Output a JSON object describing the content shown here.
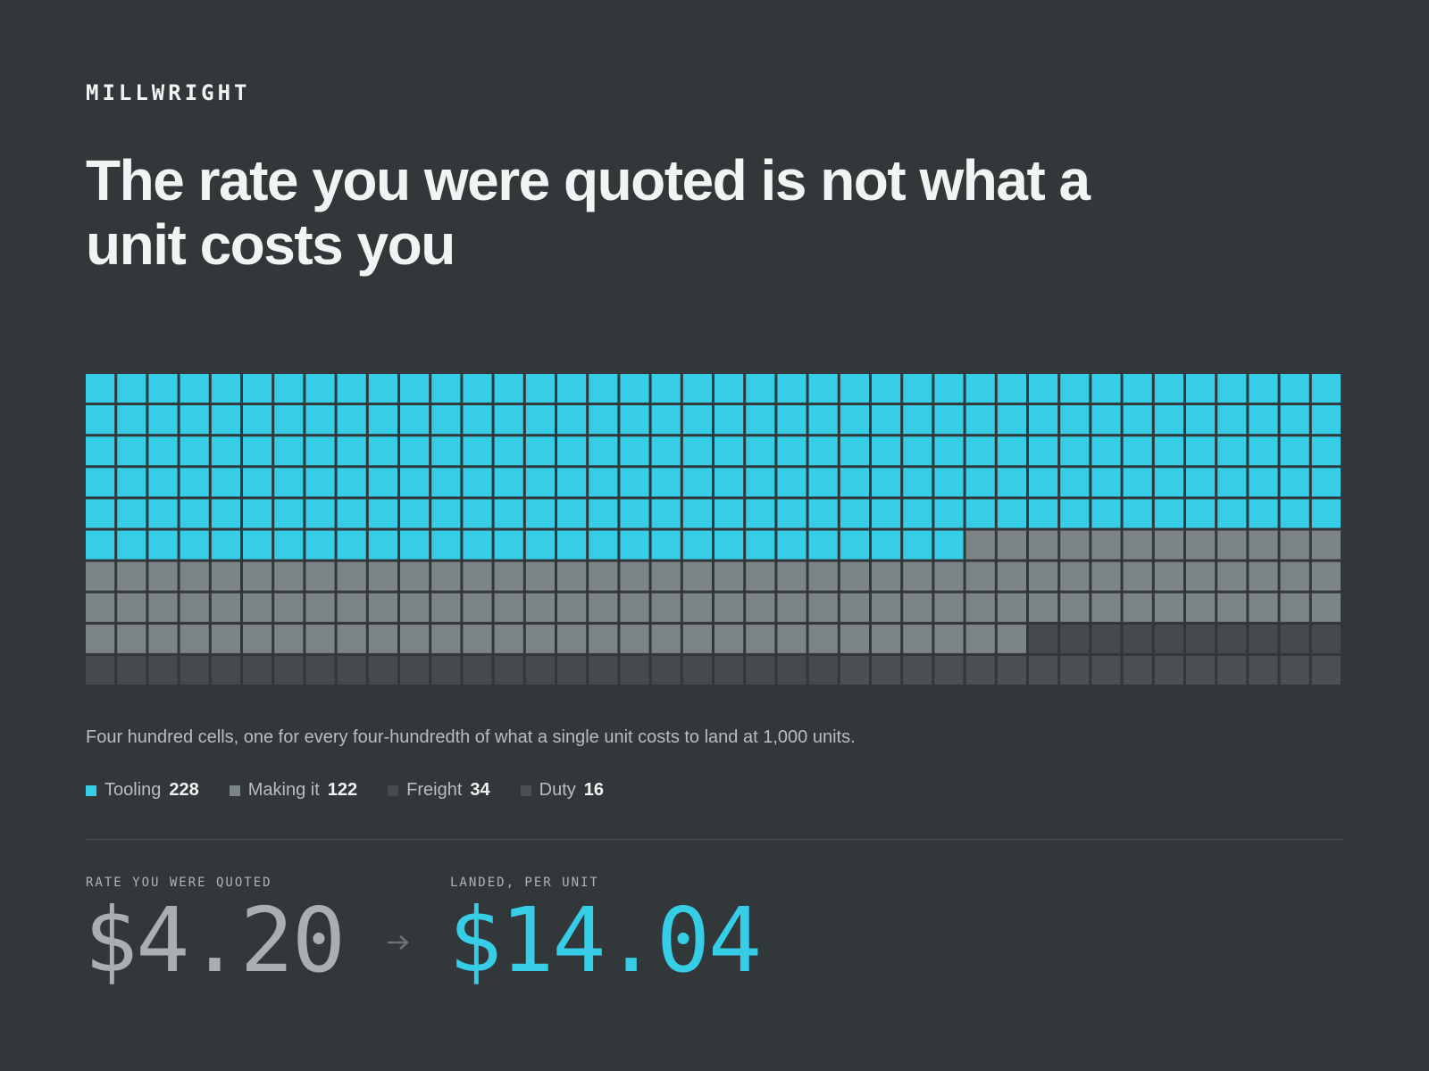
{
  "brand": "MILLWRIGHT",
  "chart_data": {
    "type": "waffle",
    "title": "The rate you were quoted is not what a unit costs you",
    "subtitle": "Four hundred cells, one for every four-hundredth of what a single unit costs to land at 1,000 units.",
    "columns": 40,
    "rows": 10,
    "series": [
      {
        "name": "Tooling",
        "color": "#36cde6",
        "values": [
          228
        ]
      },
      {
        "name": "Making it",
        "color": "#7d8486",
        "values": [
          122
        ]
      },
      {
        "name": "Freight",
        "color": "#454a4e",
        "values": [
          34
        ]
      },
      {
        "name": "Duty",
        "color": "#4b5054",
        "values": [
          16
        ]
      }
    ]
  },
  "stats": {
    "quoted": {
      "label": "RATE YOU WERE QUOTED",
      "value": "$4.20"
    },
    "landed": {
      "label": "LANDED, PER UNIT",
      "value": "$14.04"
    }
  }
}
